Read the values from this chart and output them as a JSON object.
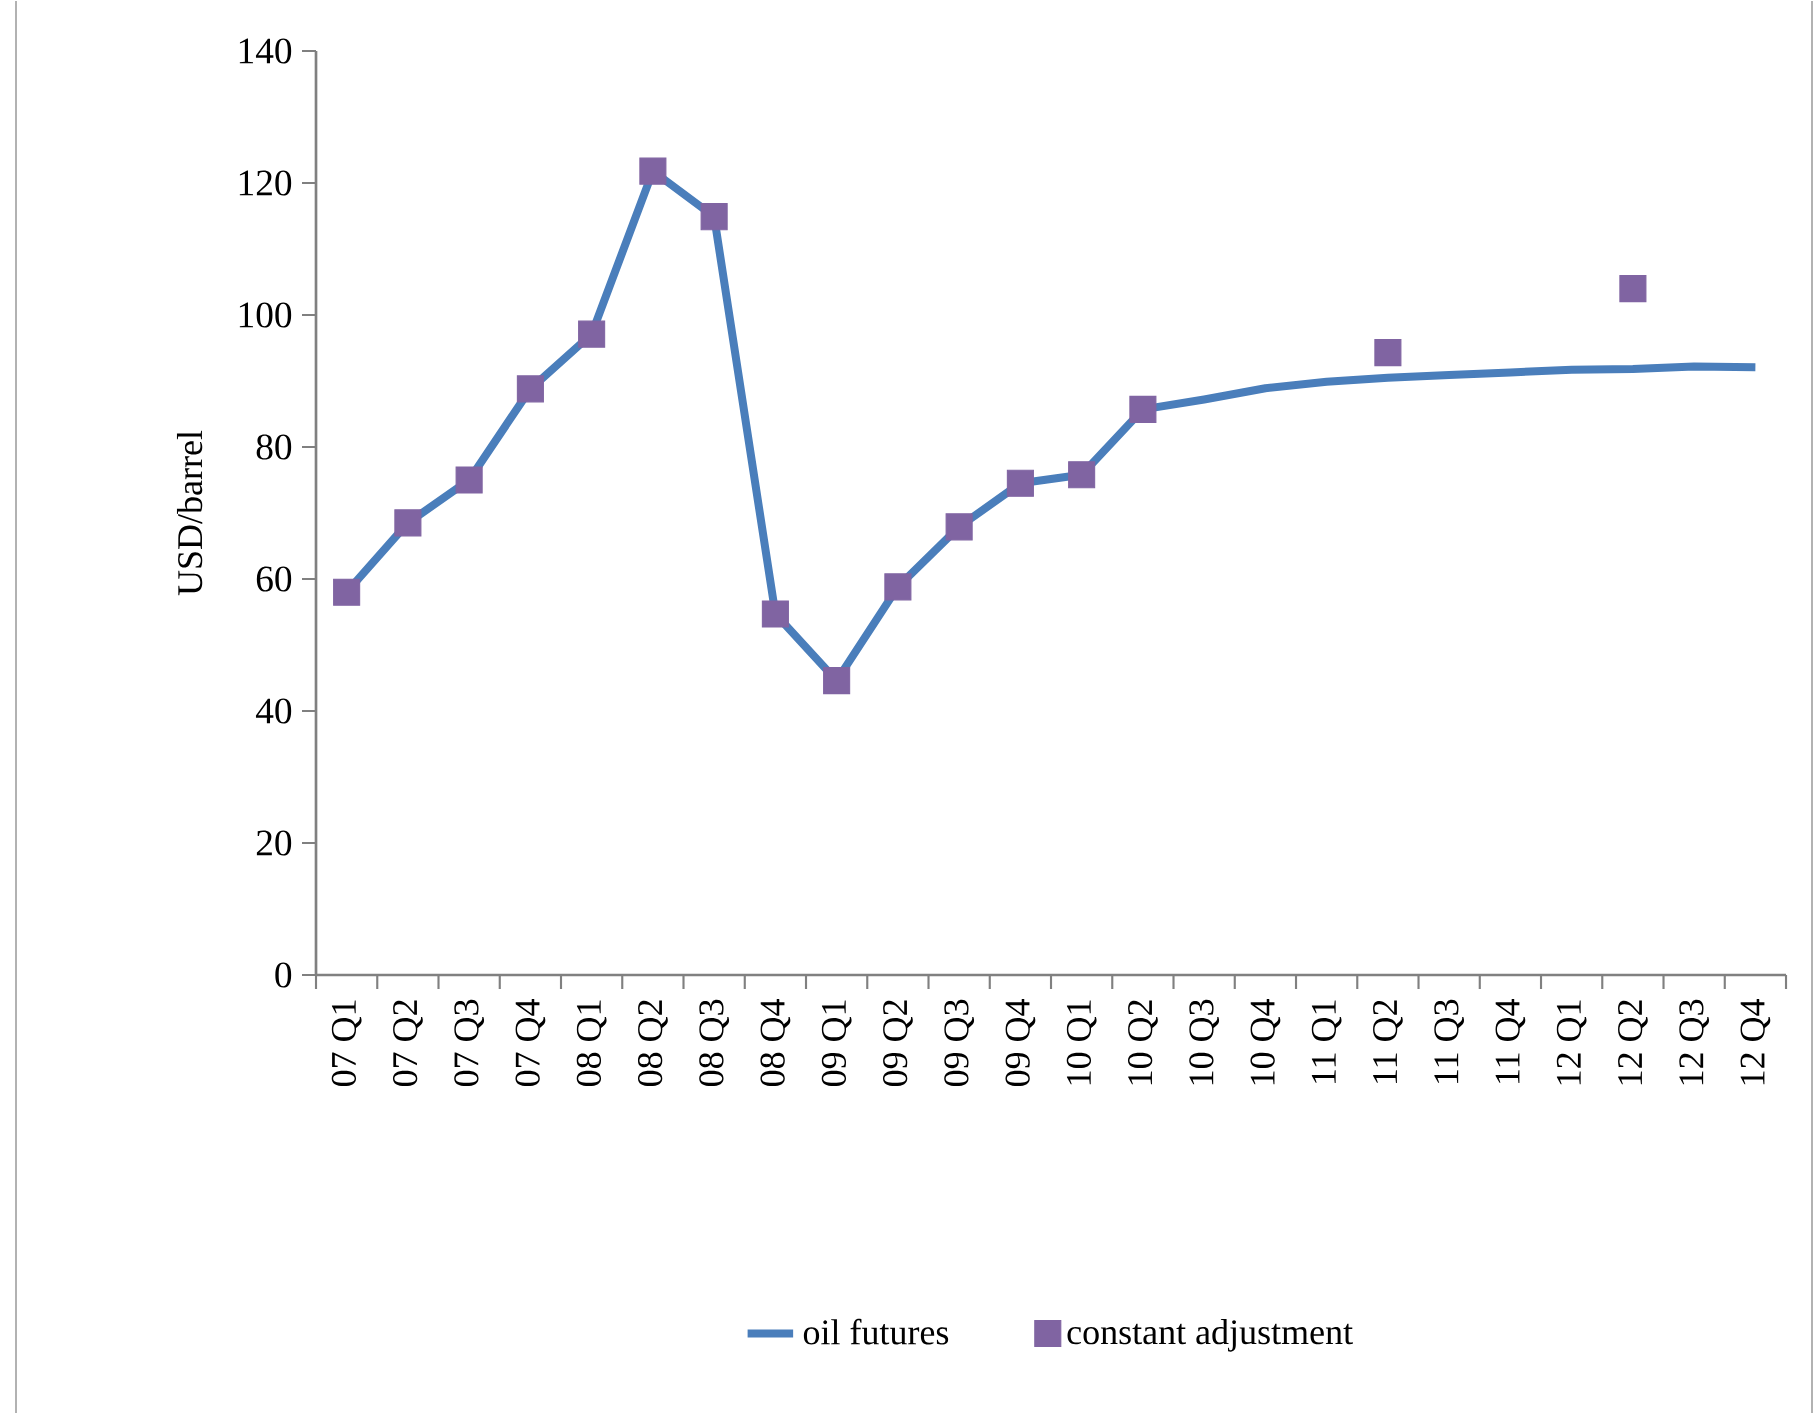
{
  "chart_data": {
    "type": "line",
    "ylabel": "USD/barrel",
    "categories": [
      "07 Q1",
      "07 Q2",
      "07 Q3",
      "07 Q4",
      "08 Q1",
      "08 Q2",
      "08 Q3",
      "08 Q4",
      "09 Q1",
      "09 Q2",
      "09 Q3",
      "09 Q4",
      "10 Q1",
      "10 Q2",
      "10 Q3",
      "10 Q4",
      "11 Q1",
      "11 Q2",
      "11 Q3",
      "11 Q4",
      "12 Q1",
      "12 Q2",
      "12 Q3",
      "12 Q4"
    ],
    "ylim": [
      0,
      140
    ],
    "yticks": [
      0,
      20,
      40,
      60,
      80,
      100,
      120,
      140
    ],
    "legend": "bottom",
    "grid": false,
    "series": [
      {
        "name": "oil futures",
        "color": "#4a7ebb",
        "marker": "none",
        "values": [
          58,
          68.5,
          75,
          88.8,
          97.1,
          121.8,
          114.9,
          54.7,
          44.6,
          58.8,
          67.9,
          74.5,
          75.8,
          85.7,
          87.2,
          88.9,
          89.9,
          90.5,
          90.9,
          91.3,
          91.7,
          91.8,
          92.2,
          92.1
        ]
      },
      {
        "name": "constant adjustment",
        "type": "scatter",
        "color": "#8064a2",
        "marker": "square",
        "values": [
          58,
          68.5,
          75,
          88.8,
          97.1,
          121.8,
          114.9,
          54.7,
          44.6,
          58.8,
          67.9,
          74.5,
          75.8,
          85.7,
          null,
          null,
          null,
          94.3,
          null,
          null,
          null,
          104,
          null,
          null
        ]
      }
    ]
  }
}
